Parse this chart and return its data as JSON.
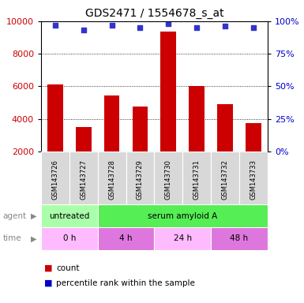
{
  "title": "GDS2471 / 1554678_s_at",
  "samples": [
    "GSM143726",
    "GSM143727",
    "GSM143728",
    "GSM143729",
    "GSM143730",
    "GSM143731",
    "GSM143732",
    "GSM143733"
  ],
  "counts": [
    6100,
    3500,
    5450,
    4750,
    9350,
    6000,
    4900,
    3750
  ],
  "percentiles": [
    97,
    93,
    97,
    95,
    98,
    95,
    96,
    95
  ],
  "ylim_left": [
    2000,
    10000
  ],
  "ylim_right": [
    0,
    100
  ],
  "yticks_left": [
    2000,
    4000,
    6000,
    8000,
    10000
  ],
  "yticks_right": [
    0,
    25,
    50,
    75,
    100
  ],
  "bar_color": "#cc0000",
  "dot_color": "#3333cc",
  "bar_width": 0.55,
  "agent_labels": [
    {
      "label": "untreated",
      "start": 0,
      "end": 2,
      "color": "#aaffaa"
    },
    {
      "label": "serum amyloid A",
      "start": 2,
      "end": 8,
      "color": "#55ee55"
    }
  ],
  "time_labels": [
    {
      "label": "0 h",
      "start": 0,
      "end": 2,
      "color": "#ffbbff"
    },
    {
      "label": "4 h",
      "start": 2,
      "end": 4,
      "color": "#dd77dd"
    },
    {
      "label": "24 h",
      "start": 4,
      "end": 6,
      "color": "#ffbbff"
    },
    {
      "label": "48 h",
      "start": 6,
      "end": 8,
      "color": "#dd77dd"
    }
  ],
  "tick_label_color_left": "#cc0000",
  "tick_label_color_right": "#0000cc",
  "grid_color": "#000000",
  "background_color": "#ffffff",
  "legend_count_color": "#cc0000",
  "legend_pct_color": "#0000cc",
  "n_samples": 8
}
